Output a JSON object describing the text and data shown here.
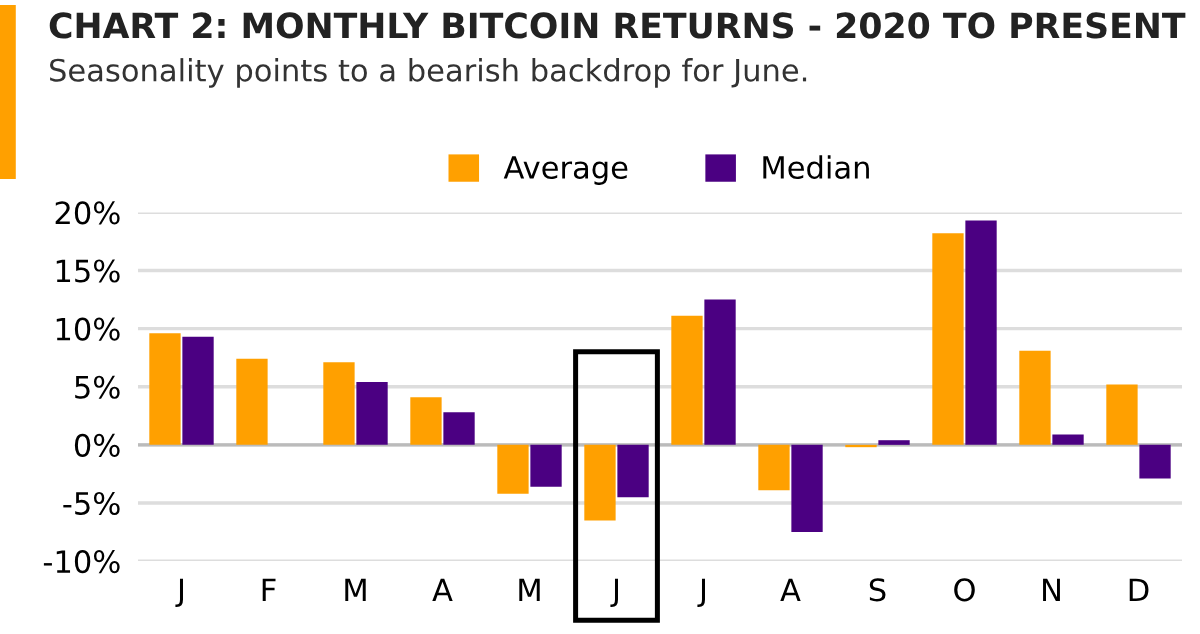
{
  "chart_data": {
    "type": "bar",
    "title": "CHART 2: MONTHLY BITCOIN RETURNS - 2020 TO PRESENT",
    "subtitle": "Seasonality points to a bearish backdrop for June.",
    "categories": [
      "J",
      "F",
      "M",
      "A",
      "M",
      "J",
      "J",
      "A",
      "S",
      "O",
      "N",
      "D"
    ],
    "series": [
      {
        "name": "Average",
        "color": "#ffa000",
        "values": [
          9.6,
          7.4,
          7.1,
          4.1,
          -4.2,
          -6.5,
          11.1,
          -3.9,
          -0.2,
          18.2,
          8.1,
          5.2
        ]
      },
      {
        "name": "Median",
        "color": "#4b0082",
        "values": [
          9.3,
          0.0,
          5.4,
          2.8,
          -3.6,
          -4.5,
          12.5,
          -7.5,
          0.4,
          19.3,
          0.9,
          -2.9
        ]
      }
    ],
    "ylim": [
      -10,
      20
    ],
    "yticks": [
      {
        "value": -10,
        "label": "-10%"
      },
      {
        "value": -5,
        "label": "-5%"
      },
      {
        "value": 0,
        "label": "0%"
      },
      {
        "value": 5,
        "label": "5%"
      },
      {
        "value": 10,
        "label": "10%"
      },
      {
        "value": 15,
        "label": "15%"
      },
      {
        "value": 20,
        "label": "20%"
      }
    ],
    "grid": "y",
    "legend": "top"
  }
}
